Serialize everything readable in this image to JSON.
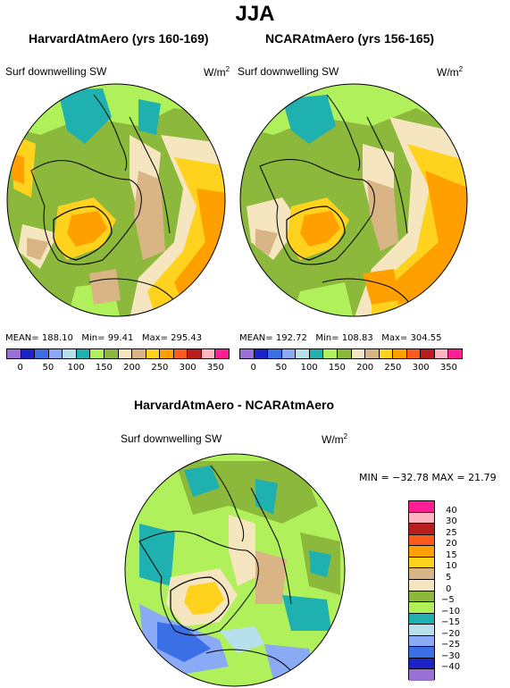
{
  "figure": {
    "title": "JJA"
  },
  "panels": [
    {
      "title": "HarvardAtmAero (yrs 160-169)",
      "variable": "Surf downwelling SW",
      "units": "W/m",
      "units_sup": "2",
      "mean_label": "MEAN=",
      "mean": "188.10",
      "min_label": "Min=",
      "min": "99.41",
      "max_label": "Max=",
      "max": "295.43"
    },
    {
      "title": "NCARAtmAero (yrs 156-165)",
      "variable": "Surf downwelling SW",
      "units": "W/m",
      "units_sup": "2",
      "mean_label": "MEAN=",
      "mean": "192.72",
      "min_label": "Min=",
      "min": "108.83",
      "max_label": "Max=",
      "max": "304.55"
    }
  ],
  "diff_panel": {
    "title": "HarvardAtmAero - NCARAtmAero",
    "variable": "Surf downwelling SW",
    "units": "W/m",
    "units_sup": "2",
    "stats": "MIN = −32.78 MAX =  21.79"
  },
  "colorbar_abs": {
    "colors": [
      "#9a6fd6",
      "#1e23c8",
      "#3a6fe6",
      "#8aaaf5",
      "#b8e0ec",
      "#1fb0b0",
      "#b0f05a",
      "#8cb83c",
      "#f5e6c0",
      "#d9b586",
      "#ffd21e",
      "#ffa000",
      "#ff5a1e",
      "#b91e1e",
      "#ffb4c0",
      "#ff1e96"
    ],
    "labels": [
      "0",
      "50",
      "100",
      "150",
      "200",
      "250",
      "300",
      "350"
    ]
  },
  "colorbar_diff": {
    "colors": [
      "#ff1e96",
      "#ffb4c0",
      "#b91e1e",
      "#ff5a1e",
      "#ffa000",
      "#ffd21e",
      "#d9b586",
      "#f5e6c0",
      "#8cb83c",
      "#b0f05a",
      "#1fb0b0",
      "#b8e0ec",
      "#8aaaf5",
      "#3a6fe6",
      "#1e23c8",
      "#9a6fd6"
    ],
    "labels": [
      "40",
      "30",
      "25",
      "20",
      "15",
      "10",
      "5",
      "0",
      "−5",
      "−10",
      "−15",
      "−20",
      "−25",
      "−30",
      "−40"
    ]
  },
  "map_colors": {
    "bg": "#8cb83c",
    "light_green": "#b0f05a",
    "teal": "#1fb0b0",
    "tan": "#d9b586",
    "beige": "#f5e6c0",
    "yellow": "#ffd21e",
    "orange": "#ffa000",
    "red_orange": "#ff5a1e",
    "light_blue": "#b8e0ec",
    "blue": "#8aaaf5",
    "mid_blue": "#3a6fe6"
  }
}
